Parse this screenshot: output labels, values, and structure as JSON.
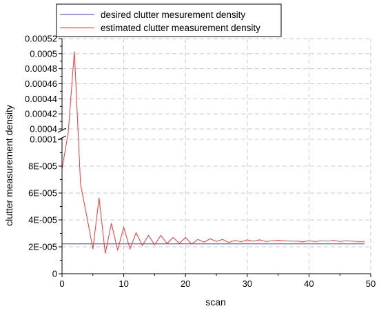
{
  "chart_data": {
    "type": "line",
    "title": "",
    "xlabel": "scan",
    "ylabel": "clutter measurement density",
    "xlim": [
      0,
      50
    ],
    "x_ticks": [
      0,
      10,
      20,
      30,
      40,
      50
    ],
    "y_axis_break": true,
    "y_lower_range": [
      0,
      0.0001
    ],
    "y_lower_ticks": [
      {
        "value": 0,
        "label": "0"
      },
      {
        "value": 2e-05,
        "label": "2E-005"
      },
      {
        "value": 4e-05,
        "label": "4E-005"
      },
      {
        "value": 6e-05,
        "label": "6E-005"
      },
      {
        "value": 8e-05,
        "label": "8E-005"
      },
      {
        "value": 0.0001,
        "label": "0.0001"
      }
    ],
    "y_upper_range": [
      0.0004,
      0.00052
    ],
    "y_upper_ticks": [
      {
        "value": 0.0004,
        "label": "0.0004"
      },
      {
        "value": 0.00042,
        "label": "0.00042"
      },
      {
        "value": 0.00044,
        "label": "0.00044"
      },
      {
        "value": 0.00046,
        "label": "0.00046"
      },
      {
        "value": 0.00048,
        "label": "0.00048"
      },
      {
        "value": 0.0005,
        "label": "0.0005"
      },
      {
        "value": 0.00052,
        "label": "0.00052"
      }
    ],
    "grid": true,
    "legend_position": "top-left",
    "series": [
      {
        "name": "desired clutter mesurement density",
        "color": "#3333cc",
        "x": [
          0,
          49
        ],
        "y": [
          2.22e-05,
          2.22e-05
        ]
      },
      {
        "name": "estimated clutter measurement density",
        "color": "#ff3333",
        "x": [
          0,
          1,
          2,
          3,
          4,
          5,
          6,
          7,
          8,
          9,
          10,
          11,
          12,
          13,
          14,
          15,
          16,
          17,
          18,
          19,
          20,
          21,
          22,
          23,
          24,
          25,
          26,
          27,
          28,
          29,
          30,
          31,
          32,
          33,
          34,
          35,
          36,
          37,
          38,
          39,
          40,
          41,
          42,
          43,
          44,
          45,
          46,
          47,
          48,
          49
        ],
        "y": [
          7.78e-05,
          0.00029,
          0.000503,
          6.65e-05,
          4.3e-05,
          1.83e-05,
          5.65e-05,
          1.5e-05,
          3.75e-05,
          1.75e-05,
          3.45e-05,
          1.85e-05,
          3.05e-05,
          2.1e-05,
          2.85e-05,
          2.15e-05,
          2.85e-05,
          2.25e-05,
          2.7e-05,
          2.25e-05,
          2.7e-05,
          2.2e-05,
          2.55e-05,
          2.35e-05,
          2.6e-05,
          2.4e-05,
          2.55e-05,
          2.32e-05,
          2.48e-05,
          2.38e-05,
          2.52e-05,
          2.42e-05,
          2.52e-05,
          2.4e-05,
          2.45e-05,
          2.48e-05,
          2.45e-05,
          2.42e-05,
          2.42e-05,
          2.38e-05,
          2.45e-05,
          2.4e-05,
          2.45e-05,
          2.42e-05,
          2.48e-05,
          2.4e-05,
          2.45e-05,
          2.42e-05,
          2.4e-05,
          2.4e-05
        ]
      }
    ]
  }
}
